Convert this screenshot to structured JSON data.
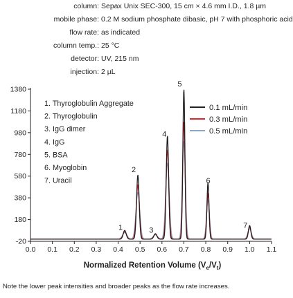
{
  "conditions": [
    {
      "key": "column:",
      "value": "Sepax Unix SEC-300, 15 cm × 4.6 mm I.D., 1.8 µm"
    },
    {
      "key": "mobile phase:",
      "value": "0.2 M sodium phosphate dibasic, pH 7 with phosphoric acid"
    },
    {
      "key": "flow rate:",
      "value": "as indicated"
    },
    {
      "key": "column temp.:",
      "value": "25 °C"
    },
    {
      "key": "detector:",
      "value": "UV, 215 nm"
    },
    {
      "key": "injection:",
      "value": "2 µL"
    }
  ],
  "caption": "Note the lower peak intensities and broader peaks as the flow rate increases.",
  "chart_data": {
    "type": "line",
    "xlabel_main": "Normalized Retention Volume (V",
    "xlabel_sub1": "e",
    "xlabel_mid": "/V",
    "xlabel_sub2": "t",
    "xlabel_end": ")",
    "xlim": [
      0.0,
      1.1
    ],
    "ylim": [
      -20,
      1380
    ],
    "x_ticks": [
      0.0,
      0.1,
      0.2,
      0.3,
      0.4,
      0.5,
      0.6,
      0.7,
      0.8,
      0.9,
      1.0,
      1.1
    ],
    "x_tick_labels": [
      "0.0",
      "0.1",
      "0.2",
      "0.3",
      "0.4",
      "0.5",
      "0.6",
      "0.7",
      "0.8",
      "0.9",
      "1.0",
      "1.1"
    ],
    "y_ticks": [
      -20,
      180,
      380,
      580,
      780,
      980,
      1180,
      1380
    ],
    "y_tick_labels": [
      "-20",
      "180",
      "380",
      "580",
      "780",
      "980",
      "1180",
      "1380"
    ],
    "grid": false,
    "legend_position": "top-right",
    "compound_list": [
      "1. Thyroglobulin Aggregate",
      "2. Thyroglobulin",
      "3. IgG dimer",
      "4. IgG",
      "5. BSA",
      "6. Myoglobin",
      "7. Uracil"
    ],
    "peak_labels": [
      {
        "label": "1",
        "x": 0.43,
        "y": 60
      },
      {
        "label": "2",
        "x": 0.49,
        "y": 590
      },
      {
        "label": "3",
        "x": 0.57,
        "y": 35
      },
      {
        "label": "4",
        "x": 0.63,
        "y": 920
      },
      {
        "label": "5",
        "x": 0.7,
        "y": 1380
      },
      {
        "label": "6",
        "x": 0.83,
        "y": 490
      },
      {
        "label": "7",
        "x": 1.0,
        "y": 80
      }
    ],
    "peaks": [
      {
        "x": 0.43,
        "w": 0.008
      },
      {
        "x": 0.49,
        "w": 0.007
      },
      {
        "x": 0.57,
        "w": 0.008
      },
      {
        "x": 0.625,
        "w": 0.0065
      },
      {
        "x": 0.7,
        "w": 0.0055
      },
      {
        "x": 0.81,
        "w": 0.0055
      },
      {
        "x": 1.0,
        "w": 0.0065
      }
    ],
    "series": [
      {
        "name": "0.1 mL/min",
        "color": "#231f20",
        "heights": [
          80,
          590,
          50,
          950,
          1380,
          520,
          125
        ],
        "width_factor": 0.85
      },
      {
        "name": "0.3 mL/min",
        "color": "#e0242b",
        "heights": [
          70,
          500,
          45,
          820,
          1080,
          420,
          110
        ],
        "width_factor": 1.0
      },
      {
        "name": "0.5 mL/min",
        "color": "#8aa9c7",
        "heights": [
          60,
          430,
          40,
          700,
          900,
          360,
          95
        ],
        "width_factor": 1.25
      }
    ]
  }
}
